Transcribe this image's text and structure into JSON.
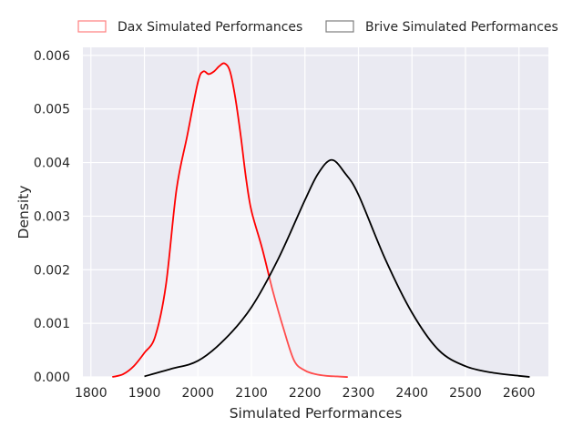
{
  "chart_data": {
    "type": "line",
    "title": "",
    "xlabel": "Simulated Performances",
    "ylabel": "Density",
    "xlim": [
      1785,
      2655
    ],
    "ylim": [
      0,
      0.00615
    ],
    "x_ticks": [
      1800,
      1900,
      2000,
      2100,
      2200,
      2300,
      2400,
      2500,
      2600
    ],
    "y_ticks": [
      0.0,
      0.001,
      0.002,
      0.003,
      0.004,
      0.005,
      0.006
    ],
    "x_tick_labels": [
      "1800",
      "1900",
      "2000",
      "2100",
      "2200",
      "2300",
      "2400",
      "2500",
      "2600"
    ],
    "y_tick_labels": [
      "0.000",
      "0.001",
      "0.002",
      "0.003",
      "0.004",
      "0.005",
      "0.006"
    ],
    "grid": true,
    "legend_position": "top-center-outside",
    "series": [
      {
        "name": "Dax Simulated Performances",
        "color": "#ff0000",
        "fill": "#ffffff",
        "fill_opacity": 0.45,
        "x": [
          1840,
          1860,
          1880,
          1900,
          1920,
          1940,
          1960,
          1980,
          2000,
          2010,
          2020,
          2030,
          2040,
          2050,
          2060,
          2070,
          2080,
          2090,
          2100,
          2120,
          2140,
          2160,
          2180,
          2200,
          2220,
          2240,
          2260,
          2280
        ],
        "y": [
          0.0,
          5e-05,
          0.0002,
          0.00045,
          0.00075,
          0.0017,
          0.0035,
          0.0045,
          0.0055,
          0.0057,
          0.00565,
          0.0057,
          0.0058,
          0.00585,
          0.0057,
          0.0052,
          0.0045,
          0.0037,
          0.0031,
          0.0024,
          0.0016,
          0.0009,
          0.0003,
          0.00012,
          5e-05,
          2e-05,
          1e-05,
          0.0
        ]
      },
      {
        "name": "Brive Simulated Performances",
        "color": "#000000",
        "fill": "#ffffff",
        "fill_opacity": 0.3,
        "x": [
          1900,
          1950,
          2000,
          2050,
          2100,
          2150,
          2200,
          2225,
          2250,
          2275,
          2300,
          2350,
          2400,
          2450,
          2500,
          2550,
          2600,
          2620
        ],
        "y": [
          1e-05,
          0.00015,
          0.0003,
          0.0007,
          0.0013,
          0.0022,
          0.0033,
          0.0038,
          0.00405,
          0.0038,
          0.0034,
          0.0022,
          0.0012,
          0.0005,
          0.0002,
          8e-05,
          2e-05,
          0.0
        ]
      }
    ]
  }
}
